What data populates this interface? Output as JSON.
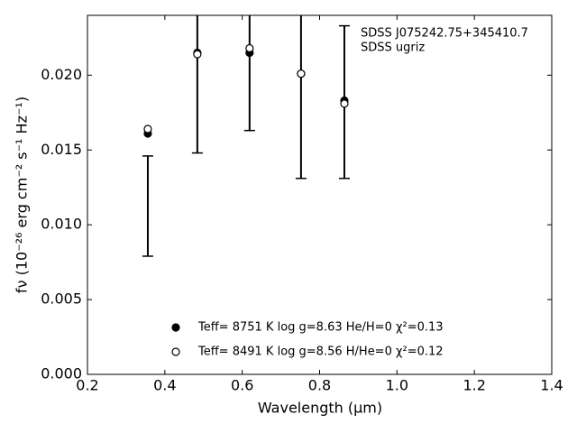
{
  "chart_data": {
    "type": "scatter",
    "x": [
      0.356,
      0.484,
      0.619,
      0.752,
      0.864
    ],
    "series": [
      {
        "name": "Teff=  8751 K  log g=8.63  He/H=0  χ²=0.13",
        "marker": "filled",
        "color": "#000000",
        "values": [
          0.0161,
          0.0215,
          0.0215,
          0.0201,
          0.0183
        ]
      },
      {
        "name": "Teff=  8491 K  log g=8.56  H/He=0  χ²=0.12",
        "marker": "open",
        "color": "#000000",
        "values": [
          0.0164,
          0.0214,
          0.0218,
          0.0201,
          0.0181
        ]
      }
    ],
    "error_bars": {
      "color": "#000000",
      "values": [
        0.01125,
        0.0215,
        0.0218,
        0.0201,
        0.0182
      ],
      "errors": [
        0.00335,
        0.0067,
        0.0055,
        0.007,
        0.0051
      ]
    },
    "xlabel": "Wavelength (μm)",
    "ylabel": "fν (10⁻²⁶ erg cm⁻² s⁻¹ Hz⁻¹)",
    "annotations": [
      "SDSS J075242.75+345410.7",
      "SDSS ugriz"
    ],
    "xlim": [
      0.2,
      1.4
    ],
    "ylim": [
      0,
      0.024
    ],
    "xticks": [
      0.2,
      0.4,
      0.6,
      0.8,
      {
        "value": 1,
        "label": "1.0"
      },
      1.2,
      1.4
    ],
    "yticks": [
      {
        "value": 0,
        "label": "0.000"
      },
      {
        "value": 0.005,
        "label": "0.005"
      },
      {
        "value": 0.01,
        "label": "0.010"
      },
      {
        "value": 0.015,
        "label": "0.015"
      },
      {
        "value": 0.02,
        "label": "0.020"
      }
    ],
    "grid": false
  }
}
